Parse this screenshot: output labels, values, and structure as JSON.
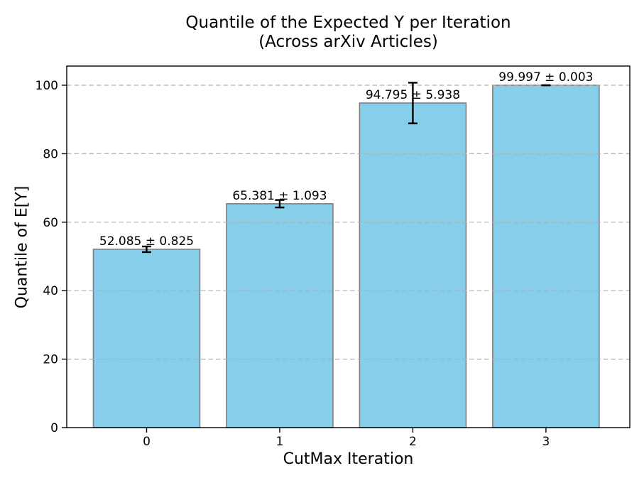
{
  "chart_data": {
    "type": "bar",
    "title": "Quantile of the Expected Y per Iteration",
    "subtitle": "(Across arXiv Articles)",
    "xlabel": "CutMax Iteration",
    "ylabel": "Quantile of E[Y]",
    "categories": [
      "0",
      "1",
      "2",
      "3"
    ],
    "values": [
      52.085,
      65.381,
      94.795,
      99.997
    ],
    "errors": [
      0.825,
      1.093,
      5.938,
      0.003
    ],
    "bar_labels": [
      "52.085 ± 0.825",
      "65.381 ± 1.093",
      "94.795 ± 5.938",
      "99.997 ± 0.003"
    ],
    "yticks": [
      0,
      20,
      40,
      60,
      80,
      100
    ],
    "ylim": [
      0,
      105.6
    ],
    "xlim": [
      -0.6,
      3.63
    ],
    "bar_width": 0.8,
    "grid": "horizontal dashed, drawn above bars",
    "legend": "none",
    "colors": {
      "bar_fill": "#87CEEB",
      "bar_edge": "#7f7f7f",
      "error_bar": "#000000",
      "grid_line": "#b0b0b0",
      "spine": "#000000",
      "background": "#ffffff"
    }
  }
}
